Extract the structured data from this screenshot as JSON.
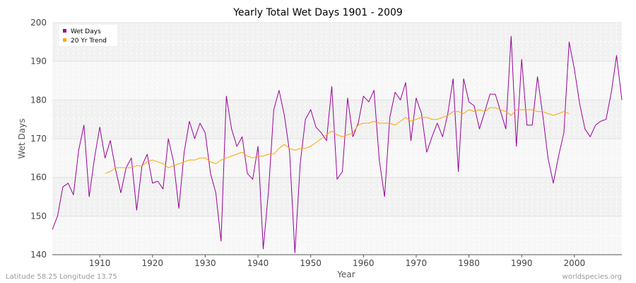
{
  "chart_data": {
    "type": "line",
    "title": "Yearly Total Wet Days 1901 - 2009",
    "xlabel": "Year",
    "ylabel": "Wet Days",
    "xlim": [
      1901,
      2009
    ],
    "ylim": [
      140,
      200
    ],
    "x_ticks": [
      1910,
      1920,
      1930,
      1940,
      1950,
      1960,
      1970,
      1980,
      1990,
      2000
    ],
    "y_ticks": [
      140,
      150,
      160,
      170,
      180,
      190,
      200
    ],
    "grid": true,
    "legend_position": "top-left",
    "series": [
      {
        "name": "Wet Days",
        "color": "#990099",
        "x": [
          1901,
          1902,
          1903,
          1904,
          1905,
          1906,
          1907,
          1908,
          1909,
          1910,
          1911,
          1912,
          1913,
          1914,
          1915,
          1916,
          1917,
          1918,
          1919,
          1920,
          1921,
          1922,
          1923,
          1924,
          1925,
          1926,
          1927,
          1928,
          1929,
          1930,
          1931,
          1932,
          1933,
          1934,
          1935,
          1936,
          1937,
          1938,
          1939,
          1940,
          1941,
          1942,
          1943,
          1944,
          1945,
          1946,
          1947,
          1948,
          1949,
          1950,
          1951,
          1952,
          1953,
          1954,
          1955,
          1956,
          1957,
          1958,
          1959,
          1960,
          1961,
          1962,
          1963,
          1964,
          1965,
          1966,
          1967,
          1968,
          1969,
          1970,
          1971,
          1972,
          1973,
          1974,
          1975,
          1976,
          1977,
          1978,
          1979,
          1980,
          1981,
          1982,
          1983,
          1984,
          1985,
          1986,
          1987,
          1988,
          1989,
          1990,
          1991,
          1992,
          1993,
          1994,
          1995,
          1996,
          1997,
          1998,
          1999,
          2000,
          2001,
          2002,
          2003,
          2004,
          2005,
          2006,
          2007,
          2008,
          2009
        ],
        "values": [
          146.5,
          150,
          157.5,
          158.5,
          155.5,
          167,
          173.5,
          155,
          165,
          173,
          165,
          169.5,
          162,
          156,
          162.5,
          165,
          151.5,
          163,
          166,
          158.5,
          159,
          157,
          170,
          164,
          152,
          166.5,
          174.5,
          170,
          174,
          171.5,
          161,
          156,
          143.5,
          181,
          172.5,
          168,
          170.5,
          161,
          159.5,
          168,
          141.5,
          156.5,
          177.5,
          182.5,
          176,
          166.5,
          140.5,
          163.5,
          175,
          177.5,
          173,
          171.5,
          169.5,
          183.5,
          159.5,
          161.5,
          180.5,
          170.5,
          174,
          181,
          179.5,
          182.5,
          164.5,
          155,
          175.5,
          182,
          180,
          184.5,
          169.5,
          180.5,
          176.5,
          166.5,
          170.5,
          174,
          170.5,
          176.5,
          185.5,
          161.5,
          185.5,
          179.5,
          178.5,
          172.5,
          177,
          181.5,
          181.5,
          177,
          172.5,
          196.5,
          168,
          190.5,
          173.5,
          173.5,
          186,
          176,
          165,
          158.5,
          165.5,
          171.5,
          195,
          188,
          179,
          172.5,
          170.5,
          173.5,
          174.5,
          175,
          182,
          191.5,
          180
        ]
      },
      {
        "name": "20 Yr Trend",
        "color": "#ffa500",
        "x": [
          1911,
          1912,
          1913,
          1914,
          1915,
          1916,
          1917,
          1918,
          1919,
          1920,
          1921,
          1922,
          1923,
          1924,
          1925,
          1926,
          1927,
          1928,
          1929,
          1930,
          1931,
          1932,
          1933,
          1934,
          1935,
          1936,
          1937,
          1938,
          1939,
          1940,
          1941,
          1942,
          1943,
          1944,
          1945,
          1946,
          1947,
          1948,
          1949,
          1950,
          1951,
          1952,
          1953,
          1954,
          1955,
          1956,
          1957,
          1958,
          1959,
          1960,
          1961,
          1962,
          1963,
          1964,
          1965,
          1966,
          1967,
          1968,
          1969,
          1970,
          1971,
          1972,
          1973,
          1974,
          1975,
          1976,
          1977,
          1978,
          1979,
          1980,
          1981,
          1982,
          1983,
          1984,
          1985,
          1986,
          1987,
          1988,
          1989,
          1990,
          1991,
          1992,
          1993,
          1994,
          1995,
          1996,
          1997,
          1998,
          1999
        ],
        "values": [
          161,
          161.5,
          162.5,
          162.5,
          162.5,
          162.5,
          163,
          163,
          164,
          164.5,
          164,
          163.5,
          162.5,
          163,
          163.5,
          164,
          164.5,
          164.5,
          165,
          165,
          164,
          163.5,
          164.5,
          165,
          165.5,
          166,
          166.5,
          165.5,
          165,
          165.5,
          165.5,
          166,
          166,
          167.5,
          168.5,
          167.5,
          167,
          167.5,
          167.5,
          168,
          169,
          170,
          171,
          172,
          171,
          170.5,
          171,
          171.5,
          173.5,
          174,
          174,
          174.5,
          174,
          174,
          174,
          173.5,
          174.5,
          175.5,
          174.5,
          175,
          175.5,
          175.5,
          175,
          175,
          175.5,
          176,
          177,
          177,
          176.5,
          177.5,
          177,
          177.5,
          177,
          178,
          178,
          177.5,
          177,
          176,
          177.5,
          177.5,
          177.5,
          177.5,
          177,
          177,
          176.5,
          176,
          176.5,
          177,
          176.5
        ]
      }
    ]
  },
  "footer": {
    "left": "Latitude 58.25 Longitude 13.75",
    "right": "worldspecies.org"
  }
}
